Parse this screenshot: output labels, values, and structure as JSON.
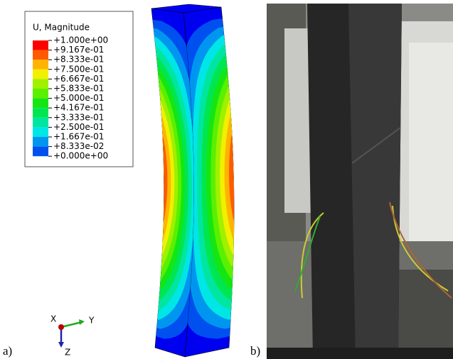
{
  "legend": {
    "title": "U, Magnitude",
    "entries": [
      {
        "label": "+1.000e+00",
        "color": "#ff0000"
      },
      {
        "label": "+9.167e-01",
        "color": "#ff5a00"
      },
      {
        "label": "+8.333e-01",
        "color": "#ffb400"
      },
      {
        "label": "+7.500e-01",
        "color": "#f0f000"
      },
      {
        "label": "+6.667e-01",
        "color": "#a0f000"
      },
      {
        "label": "+5.833e-01",
        "color": "#5af000"
      },
      {
        "label": "+5.000e-01",
        "color": "#14e614"
      },
      {
        "label": "+4.167e-01",
        "color": "#00e650"
      },
      {
        "label": "+3.333e-01",
        "color": "#00e6a0"
      },
      {
        "label": "+2.500e-01",
        "color": "#00e6e6"
      },
      {
        "label": "+1.667e-01",
        "color": "#0096f0"
      },
      {
        "label": "+8.333e-02",
        "color": "#0050f0"
      },
      {
        "label": "+0.000e+00",
        "color": "#0000f0"
      }
    ]
  },
  "triad": {
    "x": "X",
    "y": "Y",
    "z": "Z"
  },
  "panels": [
    "a)",
    "b)"
  ]
}
